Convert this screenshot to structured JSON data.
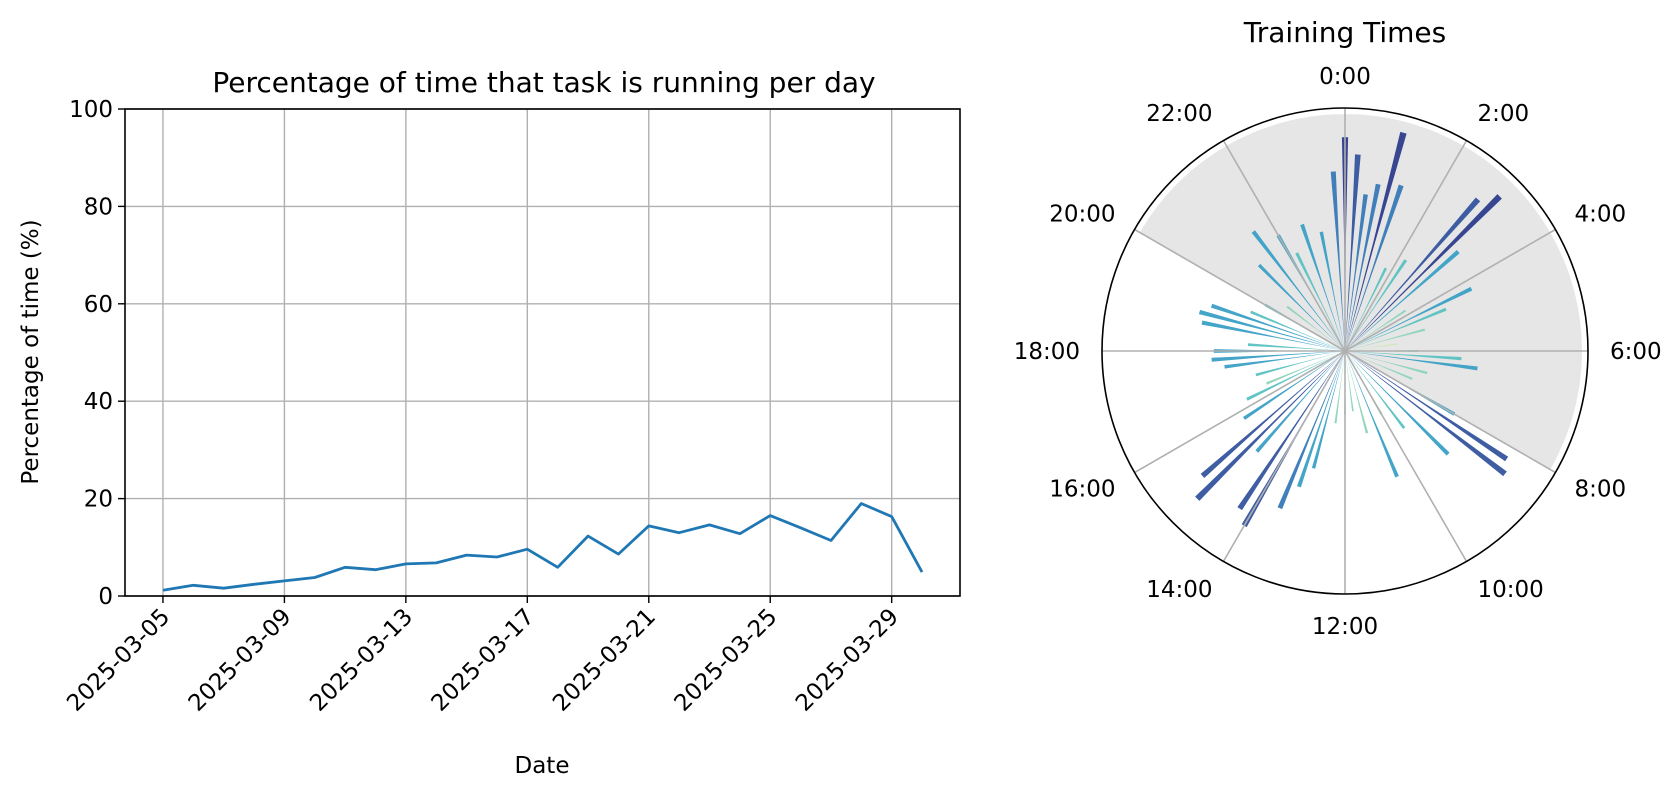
{
  "figure": {
    "background": "#ffffff"
  },
  "chart_data": [
    {
      "type": "line",
      "title": "Percentage of time that task is running per day",
      "xlabel": "Date",
      "ylabel": "Percentage of time (%)",
      "ylim": [
        0,
        100
      ],
      "yticks": [
        "0",
        "20",
        "40",
        "60",
        "80",
        "100"
      ],
      "xticks": [
        "2025-03-05",
        "2025-03-09",
        "2025-03-13",
        "2025-03-17",
        "2025-03-21",
        "2025-03-25",
        "2025-03-29"
      ],
      "grid": true,
      "line_color": "#1f77b4",
      "x": [
        "2025-03-05",
        "2025-03-06",
        "2025-03-07",
        "2025-03-08",
        "2025-03-09",
        "2025-03-10",
        "2025-03-11",
        "2025-03-12",
        "2025-03-13",
        "2025-03-14",
        "2025-03-15",
        "2025-03-16",
        "2025-03-17",
        "2025-03-18",
        "2025-03-19",
        "2025-03-20",
        "2025-03-21",
        "2025-03-22",
        "2025-03-23",
        "2025-03-24",
        "2025-03-25",
        "2025-03-26",
        "2025-03-27",
        "2025-03-28",
        "2025-03-29",
        "2025-03-30"
      ],
      "values": [
        1.2,
        2.2,
        1.6,
        2.4,
        3.1,
        3.8,
        5.9,
        5.4,
        6.6,
        6.8,
        8.4,
        8.0,
        9.6,
        5.9,
        12.3,
        8.6,
        14.4,
        13.0,
        14.6,
        12.8,
        16.5,
        14.0,
        11.4,
        19.0,
        16.3,
        4.9
      ]
    },
    {
      "type": "polar-bar",
      "title": "Training Times",
      "angle_labels": [
        "0:00",
        "2:00",
        "4:00",
        "6:00",
        "8:00",
        "10:00",
        "12:00",
        "14:00",
        "16:00",
        "18:00",
        "20:00",
        "22:00"
      ],
      "shaded_range": [
        "20:00",
        "8:00"
      ],
      "shade_color": "#e6e6e6",
      "grid": true,
      "color_scale": [
        "#eff8c6",
        "#cbeab6",
        "#8dd4b9",
        "#5ac1c1",
        "#3aa0c6",
        "#3779b6",
        "#35549e",
        "#2e3d8c"
      ],
      "spokes": [
        {
          "hour": 23.75,
          "r": 0.74
        },
        {
          "hour": 0.0,
          "r": 0.88
        },
        {
          "hour": 0.25,
          "r": 0.81
        },
        {
          "hour": 0.5,
          "r": 0.65
        },
        {
          "hour": 0.75,
          "r": 0.7
        },
        {
          "hour": 1.0,
          "r": 0.93
        },
        {
          "hour": 1.25,
          "r": 0.72
        },
        {
          "hour": 1.75,
          "r": 0.38
        },
        {
          "hour": 2.25,
          "r": 0.45
        },
        {
          "hour": 2.75,
          "r": 0.83
        },
        {
          "hour": 3.0,
          "r": 0.9
        },
        {
          "hour": 3.25,
          "r": 0.62
        },
        {
          "hour": 3.75,
          "r": 0.3
        },
        {
          "hour": 4.25,
          "r": 0.58
        },
        {
          "hour": 4.5,
          "r": 0.45
        },
        {
          "hour": 5.0,
          "r": 0.34
        },
        {
          "hour": 5.5,
          "r": 0.22
        },
        {
          "hour": 6.0,
          "r": 0.3
        },
        {
          "hour": 6.25,
          "r": 0.48
        },
        {
          "hour": 6.5,
          "r": 0.55
        },
        {
          "hour": 7.0,
          "r": 0.35
        },
        {
          "hour": 7.5,
          "r": 0.3
        },
        {
          "hour": 8.0,
          "r": 0.52
        },
        {
          "hour": 8.25,
          "r": 0.8
        },
        {
          "hour": 8.5,
          "r": 0.83
        },
        {
          "hour": 9.0,
          "r": 0.6
        },
        {
          "hour": 9.5,
          "r": 0.4
        },
        {
          "hour": 10.0,
          "r": 0.3
        },
        {
          "hour": 10.5,
          "r": 0.56
        },
        {
          "hour": 11.0,
          "r": 0.35
        },
        {
          "hour": 11.5,
          "r": 0.25
        },
        {
          "hour": 12.0,
          "r": 0.26
        },
        {
          "hour": 12.5,
          "r": 0.3
        },
        {
          "hour": 13.0,
          "r": 0.5
        },
        {
          "hour": 13.25,
          "r": 0.59
        },
        {
          "hour": 13.5,
          "r": 0.7
        },
        {
          "hour": 14.0,
          "r": 0.83
        },
        {
          "hour": 14.25,
          "r": 0.78
        },
        {
          "hour": 14.75,
          "r": 0.55
        },
        {
          "hour": 15.0,
          "r": 0.86
        },
        {
          "hour": 15.25,
          "r": 0.78
        },
        {
          "hour": 15.75,
          "r": 0.5
        },
        {
          "hour": 16.25,
          "r": 0.45
        },
        {
          "hour": 16.5,
          "r": 0.35
        },
        {
          "hour": 17.0,
          "r": 0.38
        },
        {
          "hour": 17.5,
          "r": 0.5
        },
        {
          "hour": 17.75,
          "r": 0.55
        },
        {
          "hour": 18.0,
          "r": 0.54
        },
        {
          "hour": 18.25,
          "r": 0.4
        },
        {
          "hour": 18.75,
          "r": 0.6
        },
        {
          "hour": 19.0,
          "r": 0.62
        },
        {
          "hour": 19.25,
          "r": 0.58
        },
        {
          "hour": 19.5,
          "r": 0.42
        },
        {
          "hour": 20.0,
          "r": 0.38
        },
        {
          "hour": 20.5,
          "r": 0.3
        },
        {
          "hour": 21.0,
          "r": 0.5
        },
        {
          "hour": 21.5,
          "r": 0.62
        },
        {
          "hour": 22.0,
          "r": 0.55
        },
        {
          "hour": 22.25,
          "r": 0.45
        },
        {
          "hour": 22.75,
          "r": 0.55
        },
        {
          "hour": 23.25,
          "r": 0.5
        }
      ]
    }
  ]
}
